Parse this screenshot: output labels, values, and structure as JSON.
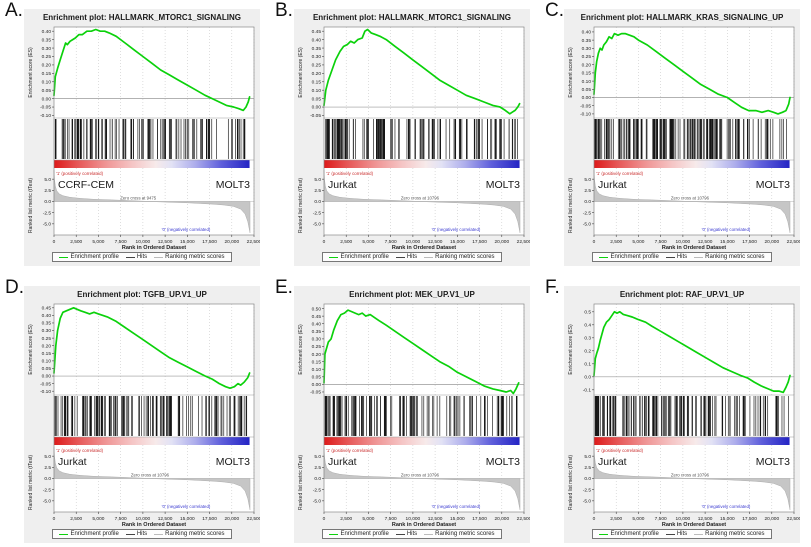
{
  "shared": {
    "x_label": "Rank in Ordered Dataset",
    "x_tick_labels": [
      "0",
      "2,500",
      "5,000",
      "7,500",
      "10,000",
      "12,500",
      "15,000",
      "17,500",
      "20,000",
      "22,500"
    ],
    "x_tick_values": [
      0,
      2500,
      5000,
      7500,
      10000,
      12500,
      15000,
      17500,
      20000,
      22500
    ],
    "xlim": [
      0,
      22500
    ],
    "es_axis_label": "Enrichment score (ES)",
    "metric_axis_label": "Ranked list metric (tTest)",
    "metric_tick_values": [
      5.0,
      2.5,
      0.0,
      -2.5,
      -5.0
    ],
    "metric_ylim": [
      -7.5,
      7.5
    ],
    "pos_corr_label": "'1' (positively correlated)",
    "neg_corr_label": "'0' (negatively correlated)",
    "legend": {
      "enrichment": "Enrichment profile",
      "hits": "Hits",
      "ranking": "Ranking metric scores"
    },
    "colors": {
      "panel_bg": "#efefef",
      "plot_bg": "#ffffff",
      "curve_green": "#0bd10b",
      "hits_black": "#161616",
      "metric_gray": "#c6c6c6",
      "pos_text_red": "#c92a2a",
      "neg_text_blue": "#3b3bd1",
      "grid": "#c9c9c9",
      "border": "#8a8a8a",
      "gradient_stops": [
        [
          "0%",
          "#dd1a1a"
        ],
        [
          "12%",
          "#e65656"
        ],
        [
          "26%",
          "#ef9393"
        ],
        [
          "40%",
          "#f5c5c5"
        ],
        [
          "52%",
          "#f7eaea"
        ],
        [
          "60%",
          "#e2e2f5"
        ],
        [
          "72%",
          "#aeaeec"
        ],
        [
          "85%",
          "#6262dc"
        ],
        [
          "100%",
          "#2424c4"
        ]
      ]
    },
    "metric_profile": {
      "x": [
        0,
        60,
        150,
        300,
        600,
        1000,
        1800,
        3000,
        4500,
        6500,
        8500,
        9800,
        10796,
        12000,
        13500,
        15000,
        16500,
        18000,
        19200,
        20200,
        21000,
        21500,
        21800,
        22050
      ],
      "y": [
        7,
        5,
        3.5,
        2.4,
        1.7,
        1.3,
        0.95,
        0.7,
        0.5,
        0.35,
        0.2,
        0.1,
        0,
        -0.1,
        -0.2,
        -0.3,
        -0.45,
        -0.6,
        -0.8,
        -1.1,
        -1.7,
        -2.8,
        -4.5,
        -7
      ]
    }
  },
  "panels": [
    {
      "letter": "A.",
      "title": "Enrichment plot: HALLMARK_MTORC1_SIGNALING",
      "left_label": "CCRF-CEM",
      "right_label": "MOLT3",
      "zero_cross_text": "Zero cross at 9475",
      "hits": {
        "seed": 7,
        "count": 115
      }
    },
    {
      "letter": "B.",
      "title": "Enrichment plot: HALLMARK_MTORC1_SIGNALING",
      "left_label": "Jurkat",
      "right_label": "MOLT3",
      "zero_cross_text": "Zero cross at 10796",
      "hits": {
        "seed": 13,
        "count": 120
      }
    },
    {
      "letter": "C.",
      "title": "Enrichment plot: HALLMARK_KRAS_SIGNALING_UP",
      "left_label": "Jurkat",
      "right_label": "MOLT3",
      "zero_cross_text": "Zero cross at 10796",
      "hits": {
        "seed": 21,
        "count": 150
      }
    },
    {
      "letter": "D.",
      "title": "Enrichment plot: TGFB_UP.V1_UP",
      "left_label": "Jurkat",
      "right_label": "MOLT3",
      "zero_cross_text": "Zero cross at 10796",
      "hits": {
        "seed": 29,
        "count": 130
      }
    },
    {
      "letter": "E.",
      "title": "Enrichment plot: MEK_UP.V1_UP",
      "left_label": "Jurkat",
      "right_label": "MOLT3",
      "zero_cross_text": "Zero cross at 10796",
      "hits": {
        "seed": 37,
        "count": 125
      }
    },
    {
      "letter": "F.",
      "title": "Enrichment plot: RAF_UP.V1_UP",
      "left_label": "Jurkat",
      "right_label": "MOLT3",
      "zero_cross_text": "Zero cross at 10796",
      "hits": {
        "seed": 45,
        "count": 135
      }
    }
  ],
  "chart_data": [
    {
      "type": "line",
      "title": "Enrichment plot: HALLMARK_MTORC1_SIGNALING",
      "xlabel": "Rank in Ordered Dataset",
      "ylabel": "Enrichment score (ES)",
      "xlim": [
        0,
        22500
      ],
      "ylim": [
        -0.115,
        0.425
      ],
      "tick_decimals": 2,
      "yticks": [
        0.4,
        0.35,
        0.3,
        0.25,
        0.2,
        0.15,
        0.1,
        0.05,
        0.0,
        -0.05,
        -0.1
      ],
      "zero_cross": 9475,
      "phenotypes": [
        "CCRF-CEM",
        "MOLT3"
      ],
      "peak_es": 0.41,
      "x": [
        0,
        150,
        400,
        700,
        1000,
        1300,
        1500,
        1800,
        2100,
        2400,
        2800,
        3200,
        3700,
        4200,
        4700,
        5200,
        5700,
        6200,
        7000,
        8000,
        9000,
        10000,
        11000,
        12000,
        13000,
        14000,
        15000,
        16000,
        17000,
        17800,
        18600,
        19400,
        20200,
        20800,
        21300,
        21600,
        21850,
        22000
      ],
      "y": [
        0.02,
        0.13,
        0.18,
        0.23,
        0.28,
        0.33,
        0.32,
        0.34,
        0.35,
        0.36,
        0.38,
        0.38,
        0.4,
        0.4,
        0.41,
        0.4,
        0.4,
        0.39,
        0.37,
        0.33,
        0.29,
        0.25,
        0.21,
        0.17,
        0.14,
        0.11,
        0.08,
        0.05,
        0.02,
        0.0,
        -0.02,
        -0.04,
        -0.05,
        -0.06,
        -0.07,
        -0.05,
        -0.02,
        0.01
      ]
    },
    {
      "type": "line",
      "title": "Enrichment plot: HALLMARK_MTORC1_SIGNALING",
      "xlabel": "Rank in Ordered Dataset",
      "ylabel": "Enrichment score (ES)",
      "xlim": [
        0,
        22500
      ],
      "ylim": [
        -0.065,
        0.475
      ],
      "tick_decimals": 2,
      "yticks": [
        0.45,
        0.4,
        0.35,
        0.3,
        0.25,
        0.2,
        0.15,
        0.1,
        0.05,
        0.0,
        -0.05
      ],
      "zero_cross": 10796,
      "phenotypes": [
        "Jurkat",
        "MOLT3"
      ],
      "peak_es": 0.46,
      "x": [
        0,
        200,
        500,
        900,
        1300,
        1800,
        2200,
        2600,
        3000,
        3400,
        3800,
        4300,
        4600,
        4900,
        5300,
        5800,
        6300,
        7000,
        8000,
        9000,
        10000,
        11000,
        12000,
        13000,
        14000,
        15000,
        16000,
        17000,
        18000,
        19000,
        19800,
        20400,
        20900,
        21200,
        21500,
        21800,
        22000
      ],
      "y": [
        0.01,
        0.1,
        0.16,
        0.22,
        0.28,
        0.33,
        0.36,
        0.37,
        0.39,
        0.38,
        0.4,
        0.41,
        0.45,
        0.46,
        0.44,
        0.43,
        0.42,
        0.4,
        0.36,
        0.32,
        0.28,
        0.24,
        0.2,
        0.16,
        0.13,
        0.1,
        0.07,
        0.05,
        0.03,
        0.01,
        0.0,
        -0.02,
        -0.04,
        -0.03,
        -0.02,
        0.0,
        0.02
      ]
    },
    {
      "type": "line",
      "title": "Enrichment plot: HALLMARK_KRAS_SIGNALING_UP",
      "xlabel": "Rank in Ordered Dataset",
      "ylabel": "Enrichment score (ES)",
      "xlim": [
        0,
        22500
      ],
      "ylim": [
        -0.125,
        0.43
      ],
      "tick_decimals": 2,
      "yticks": [
        0.4,
        0.35,
        0.3,
        0.25,
        0.2,
        0.15,
        0.1,
        0.05,
        0.0,
        -0.05,
        -0.1
      ],
      "zero_cross": 10796,
      "phenotypes": [
        "Jurkat",
        "MOLT3"
      ],
      "peak_es": 0.39,
      "x": [
        0,
        150,
        300,
        500,
        700,
        900,
        1100,
        1400,
        1700,
        2000,
        2300,
        2700,
        3100,
        3500,
        4000,
        4500,
        5000,
        6000,
        7000,
        8000,
        9000,
        10000,
        11000,
        12000,
        13000,
        14000,
        15000,
        15800,
        16600,
        17400,
        18200,
        18900,
        19600,
        20200,
        20700,
        21200,
        21600,
        21900,
        22050
      ],
      "y": [
        0.02,
        0.15,
        0.22,
        0.27,
        0.3,
        0.29,
        0.32,
        0.34,
        0.37,
        0.36,
        0.39,
        0.38,
        0.39,
        0.39,
        0.38,
        0.37,
        0.35,
        0.32,
        0.28,
        0.24,
        0.2,
        0.16,
        0.12,
        0.08,
        0.05,
        0.02,
        0.0,
        -0.03,
        -0.06,
        -0.08,
        -0.08,
        -0.09,
        -0.08,
        -0.09,
        -0.1,
        -0.09,
        -0.08,
        -0.04,
        0.0
      ]
    },
    {
      "type": "line",
      "title": "Enrichment plot: TGFB_UP.V1_UP",
      "xlabel": "Rank in Ordered Dataset",
      "ylabel": "Enrichment score (ES)",
      "xlim": [
        0,
        22500
      ],
      "ylim": [
        -0.125,
        0.475
      ],
      "tick_decimals": 2,
      "yticks": [
        0.45,
        0.4,
        0.35,
        0.3,
        0.25,
        0.2,
        0.15,
        0.1,
        0.05,
        0.0,
        -0.05,
        -0.1
      ],
      "zero_cross": 10796,
      "phenotypes": [
        "Jurkat",
        "MOLT3"
      ],
      "peak_es": 0.45,
      "x": [
        0,
        200,
        400,
        700,
        1000,
        1400,
        1800,
        2200,
        2600,
        3000,
        3500,
        4000,
        4500,
        5000,
        5500,
        6000,
        7000,
        8000,
        9000,
        10000,
        11000,
        12000,
        13000,
        14000,
        15000,
        16000,
        17000,
        17800,
        18600,
        19300,
        19800,
        20300,
        20700,
        21000,
        21400,
        21800,
        22000
      ],
      "y": [
        0.02,
        0.2,
        0.3,
        0.38,
        0.42,
        0.43,
        0.44,
        0.45,
        0.44,
        0.43,
        0.42,
        0.41,
        0.42,
        0.41,
        0.4,
        0.39,
        0.36,
        0.32,
        0.28,
        0.24,
        0.2,
        0.16,
        0.12,
        0.09,
        0.06,
        0.03,
        0.0,
        -0.02,
        -0.05,
        -0.07,
        -0.08,
        -0.07,
        -0.05,
        -0.06,
        -0.04,
        -0.01,
        0.02
      ]
    },
    {
      "type": "line",
      "title": "Enrichment plot: MEK_UP.V1_UP",
      "xlabel": "Rank in Ordered Dataset",
      "ylabel": "Enrichment score (ES)",
      "xlim": [
        0,
        22500
      ],
      "ylim": [
        -0.07,
        0.53
      ],
      "tick_decimals": 2,
      "yticks": [
        0.5,
        0.45,
        0.4,
        0.35,
        0.3,
        0.25,
        0.2,
        0.15,
        0.1,
        0.05,
        0.0,
        -0.05
      ],
      "zero_cross": 10796,
      "phenotypes": [
        "Jurkat",
        "MOLT3"
      ],
      "peak_es": 0.49,
      "x": [
        0,
        100,
        250,
        500,
        800,
        1100,
        1500,
        1900,
        2300,
        2700,
        3100,
        3500,
        3900,
        4300,
        4700,
        5200,
        5700,
        6200,
        7000,
        8000,
        9000,
        10000,
        11000,
        12000,
        13000,
        14000,
        15000,
        16000,
        17000,
        18000,
        19000,
        19800,
        20500,
        21000,
        21300,
        21600,
        21900
      ],
      "y": [
        0.01,
        0.2,
        0.23,
        0.28,
        0.3,
        0.36,
        0.42,
        0.46,
        0.47,
        0.49,
        0.48,
        0.47,
        0.46,
        0.47,
        0.45,
        0.46,
        0.44,
        0.42,
        0.39,
        0.35,
        0.31,
        0.27,
        0.23,
        0.19,
        0.15,
        0.12,
        0.08,
        0.05,
        0.02,
        -0.01,
        -0.03,
        -0.04,
        -0.05,
        -0.04,
        -0.06,
        -0.03,
        0.01
      ]
    },
    {
      "type": "line",
      "title": "Enrichment plot: RAF_UP.V1_UP",
      "xlabel": "Rank in Ordered Dataset",
      "ylabel": "Enrichment score (ES)",
      "xlim": [
        0,
        22500
      ],
      "ylim": [
        -0.14,
        0.56
      ],
      "tick_decimals": 1,
      "yticks": [
        0.5,
        0.4,
        0.3,
        0.2,
        0.1,
        0.0,
        -0.1
      ],
      "zero_cross": 10796,
      "phenotypes": [
        "Jurkat",
        "MOLT3"
      ],
      "peak_es": 0.5,
      "x": [
        0,
        150,
        300,
        500,
        700,
        900,
        1100,
        1400,
        1700,
        2000,
        2300,
        2600,
        2900,
        3300,
        3800,
        4300,
        5000,
        5800,
        6500,
        7500,
        8500,
        9500,
        10500,
        11500,
        12500,
        13500,
        14500,
        15500,
        16500,
        17300,
        18000,
        18800,
        19500,
        20200,
        20800,
        21300,
        21600,
        21850,
        22050
      ],
      "y": [
        0.01,
        0.14,
        0.18,
        0.22,
        0.28,
        0.33,
        0.38,
        0.42,
        0.44,
        0.47,
        0.5,
        0.49,
        0.5,
        0.48,
        0.47,
        0.46,
        0.44,
        0.42,
        0.39,
        0.35,
        0.31,
        0.27,
        0.23,
        0.19,
        0.15,
        0.11,
        0.07,
        0.04,
        0.01,
        -0.01,
        -0.04,
        -0.07,
        -0.09,
        -0.11,
        -0.11,
        -0.12,
        -0.08,
        -0.04,
        0.01
      ]
    }
  ]
}
